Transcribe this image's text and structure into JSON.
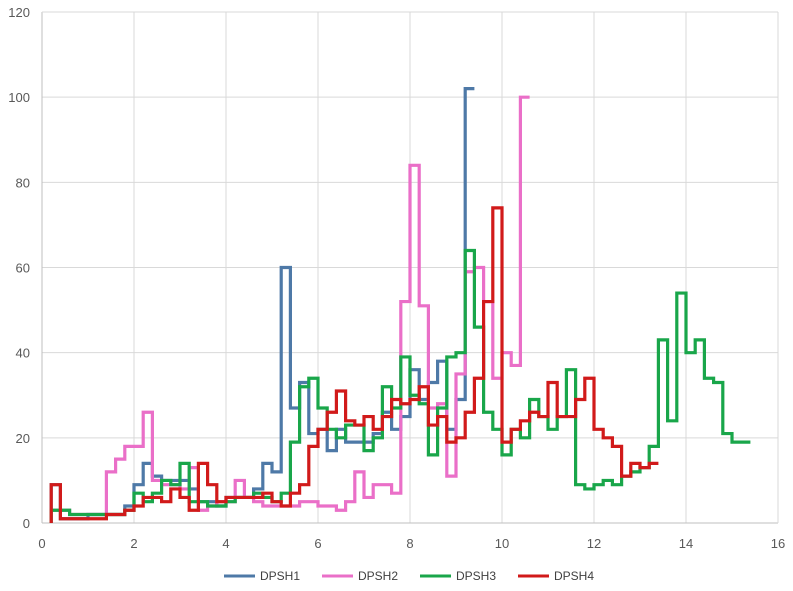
{
  "chart_data": {
    "type": "line",
    "step": true,
    "title": "",
    "xlabel": "",
    "ylabel": "",
    "xlim": [
      0,
      16
    ],
    "ylim": [
      0,
      120
    ],
    "xticks": [
      0,
      2,
      4,
      6,
      8,
      10,
      12,
      14,
      16
    ],
    "yticks": [
      0,
      20,
      40,
      60,
      80,
      100,
      120
    ],
    "grid": true,
    "legend": "bottom",
    "series": [
      {
        "name": "DPSH1",
        "color": "#4e79a7",
        "x": [
          0.2,
          0.4,
          0.6,
          0.8,
          1.0,
          1.2,
          1.4,
          1.6,
          1.8,
          2.0,
          2.2,
          2.4,
          2.6,
          2.8,
          3.0,
          3.2,
          3.4,
          3.6,
          3.8,
          4.0,
          4.2,
          4.4,
          4.6,
          4.8,
          5.0,
          5.2,
          5.4,
          5.6,
          5.8,
          6.0,
          6.2,
          6.4,
          6.6,
          6.8,
          7.0,
          7.2,
          7.4,
          7.6,
          7.8,
          8.0,
          8.2,
          8.4,
          8.6,
          8.8,
          9.0,
          9.2,
          9.4
        ],
        "y": [
          9,
          1,
          1,
          1,
          2,
          2,
          2,
          2,
          4,
          9,
          14,
          11,
          10,
          10,
          10,
          8,
          5,
          5,
          4,
          6,
          6,
          6,
          8,
          14,
          12,
          60,
          27,
          33,
          21,
          22,
          17,
          22,
          19,
          19,
          19,
          21,
          26,
          22,
          25,
          36,
          29,
          33,
          38,
          22,
          29,
          102,
          102
        ]
      },
      {
        "name": "DPSH2",
        "color": "#ea6fc8",
        "x": [
          0.2,
          0.4,
          0.6,
          0.8,
          1.0,
          1.2,
          1.4,
          1.6,
          1.8,
          2.0,
          2.2,
          2.4,
          2.6,
          2.8,
          3.0,
          3.2,
          3.4,
          3.6,
          3.8,
          4.0,
          4.2,
          4.4,
          4.6,
          4.8,
          5.0,
          5.2,
          5.4,
          5.6,
          5.8,
          6.0,
          6.2,
          6.4,
          6.6,
          6.8,
          7.0,
          7.2,
          7.4,
          7.6,
          7.8,
          8.0,
          8.2,
          8.4,
          8.6,
          8.8,
          9.0,
          9.2,
          9.4,
          9.6,
          9.8,
          10.0,
          10.2,
          10.4,
          10.6
        ],
        "y": [
          3,
          3,
          2,
          2,
          2,
          2,
          12,
          15,
          18,
          18,
          26,
          10,
          9,
          9,
          8,
          13,
          3,
          4,
          5,
          5,
          10,
          6,
          5,
          4,
          4,
          4,
          4,
          5,
          5,
          4,
          4,
          3,
          5,
          12,
          6,
          9,
          9,
          7,
          52,
          84,
          51,
          27,
          28,
          11,
          35,
          59,
          60,
          52,
          34,
          40,
          37,
          100,
          100
        ]
      },
      {
        "name": "DPSH3",
        "color": "#19a64a",
        "x": [
          0.2,
          0.4,
          0.6,
          0.8,
          1.0,
          1.2,
          1.4,
          1.6,
          1.8,
          2.0,
          2.2,
          2.4,
          2.6,
          2.8,
          3.0,
          3.2,
          3.4,
          3.6,
          3.8,
          4.0,
          4.2,
          4.4,
          4.6,
          4.8,
          5.0,
          5.2,
          5.4,
          5.6,
          5.8,
          6.0,
          6.2,
          6.4,
          6.6,
          6.8,
          7.0,
          7.2,
          7.4,
          7.6,
          7.8,
          8.0,
          8.2,
          8.4,
          8.6,
          8.8,
          9.0,
          9.2,
          9.4,
          9.6,
          9.8,
          10.0,
          10.2,
          10.4,
          10.6,
          10.8,
          11.0,
          11.2,
          11.4,
          11.6,
          11.8,
          12.0,
          12.2,
          12.4,
          12.6,
          12.8,
          13.0,
          13.2,
          13.4,
          13.6,
          13.8,
          14.0,
          14.2,
          14.4,
          14.6,
          14.8,
          15.0,
          15.2,
          15.4
        ],
        "y": [
          3,
          3,
          2,
          2,
          2,
          2,
          2,
          2,
          3,
          7,
          5,
          7,
          10,
          9,
          14,
          5,
          5,
          4,
          4,
          5,
          6,
          6,
          7,
          6,
          5,
          7,
          19,
          32,
          34,
          27,
          22,
          20,
          23,
          23,
          17,
          20,
          32,
          27,
          39,
          30,
          28,
          16,
          27,
          39,
          40,
          64,
          46,
          26,
          22,
          16,
          22,
          20,
          29,
          25,
          22,
          25,
          36,
          9,
          8,
          9,
          10,
          9,
          11,
          12,
          13,
          18,
          43,
          24,
          54,
          40,
          43,
          34,
          33,
          21,
          19,
          19,
          19
        ]
      },
      {
        "name": "DPSH4",
        "color": "#d11a1a",
        "x": [
          0.2,
          0.4,
          0.6,
          0.8,
          1.0,
          1.2,
          1.4,
          1.6,
          1.8,
          2.0,
          2.2,
          2.4,
          2.6,
          2.8,
          3.0,
          3.2,
          3.4,
          3.6,
          3.8,
          4.0,
          4.2,
          4.4,
          4.6,
          4.8,
          5.0,
          5.2,
          5.4,
          5.6,
          5.8,
          6.0,
          6.2,
          6.4,
          6.6,
          6.8,
          7.0,
          7.2,
          7.4,
          7.6,
          7.8,
          8.0,
          8.2,
          8.4,
          8.6,
          8.8,
          9.0,
          9.2,
          9.4,
          9.6,
          9.8,
          10.0,
          10.2,
          10.4,
          10.6,
          10.8,
          11.0,
          11.2,
          11.4,
          11.6,
          11.8,
          12.0,
          12.2,
          12.4,
          12.6,
          12.8,
          13.0,
          13.2,
          13.4
        ],
        "y": [
          9,
          1,
          1,
          1,
          1,
          1,
          2,
          2,
          3,
          4,
          6,
          6,
          5,
          8,
          6,
          3,
          14,
          9,
          5,
          6,
          6,
          6,
          6,
          7,
          5,
          4,
          7,
          9,
          18,
          22,
          26,
          31,
          24,
          23,
          25,
          22,
          25,
          29,
          28,
          29,
          32,
          23,
          25,
          19,
          20,
          26,
          34,
          52,
          74,
          19,
          22,
          24,
          26,
          25,
          33,
          25,
          25,
          29,
          34,
          22,
          20,
          18,
          11,
          14,
          13,
          14,
          14
        ]
      }
    ]
  },
  "colors": {
    "grid": "#d9d9d9",
    "axis": "#bfbfbf",
    "tick_text": "#595959"
  }
}
